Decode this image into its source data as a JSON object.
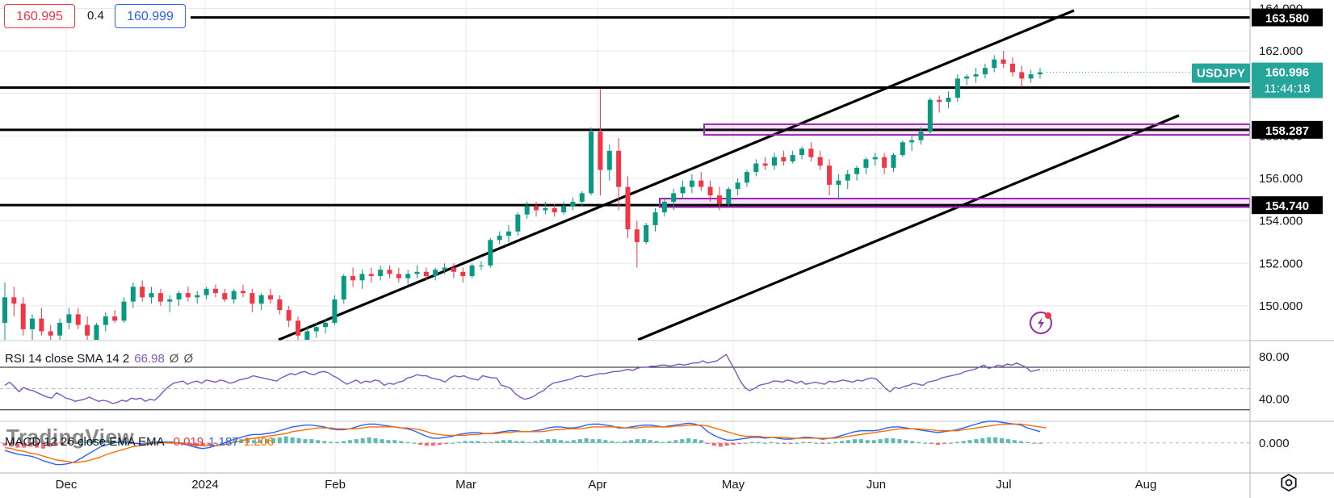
{
  "quote_bar": {
    "sell": "160.995",
    "spread": "0.4",
    "buy": "160.999"
  },
  "symbol": {
    "name": "USDJPY",
    "price": "160.996",
    "countdown": "11:44:18"
  },
  "watermark": "TradingView",
  "colors": {
    "up": "#089981",
    "down": "#f23645",
    "box": "#9c27b0",
    "rsi": "#7e57c2",
    "macd": "#2962ff",
    "signal": "#ff6d00",
    "symbol_bg": "#26a69a"
  },
  "price_axis": {
    "ticks": [
      "164.000",
      "162.000",
      "160.000",
      "158.000",
      "156.000",
      "154.000",
      "152.000",
      "150.000"
    ],
    "range": [
      148.4,
      164.4
    ]
  },
  "level_labels": [
    "163.580",
    "160.277",
    "158.287",
    "154.740"
  ],
  "time_axis": [
    "Dec",
    "2024",
    "Feb",
    "Mar",
    "Apr",
    "May",
    "Jun",
    "Jul",
    "Aug"
  ],
  "rsi": {
    "legend": {
      "label": "RSI 14 close SMA 14 2",
      "value": "66.98",
      "na1": "Ø",
      "na2": "Ø"
    },
    "ticks": [
      "80.00",
      "40.00"
    ],
    "range": [
      20,
      95
    ],
    "values": [
      53,
      56,
      52,
      47,
      51,
      49,
      48,
      46,
      44,
      42,
      41,
      46,
      44,
      41,
      40,
      38,
      39,
      40,
      42,
      40,
      38,
      39,
      38,
      36,
      37,
      39,
      38,
      41,
      40,
      41,
      38,
      40,
      39,
      43,
      48,
      52,
      55,
      56,
      57,
      54,
      56,
      57,
      55,
      58,
      57,
      56,
      58,
      57,
      55,
      56,
      58,
      59,
      60,
      62,
      61,
      60,
      59,
      58,
      57,
      60,
      62,
      64,
      63,
      65,
      66,
      64,
      63,
      65,
      66,
      65,
      62,
      60,
      57,
      54,
      56,
      58,
      55,
      57,
      56,
      58,
      57,
      53,
      55,
      54,
      56,
      57,
      60,
      61,
      63,
      62,
      62,
      60,
      59,
      58,
      56,
      60,
      62,
      61,
      62,
      60,
      59,
      58,
      62,
      61,
      60,
      60,
      53,
      52,
      50,
      45,
      42,
      40,
      41,
      43,
      46,
      48,
      52,
      55,
      56,
      57,
      58,
      59,
      61,
      62,
      61,
      62,
      63,
      64,
      64,
      65,
      66,
      66,
      67,
      68,
      67,
      69,
      70,
      70,
      71,
      71,
      72,
      72,
      71,
      72,
      73,
      72,
      73,
      74,
      74,
      76,
      74,
      75,
      76,
      79,
      82,
      74,
      66,
      57,
      51,
      48,
      50,
      53,
      54,
      55,
      57,
      57,
      56,
      58,
      57,
      55,
      57,
      54,
      55,
      56,
      55,
      54,
      57,
      56,
      57,
      58,
      57,
      56,
      58,
      57,
      59,
      60,
      59,
      55,
      50,
      47,
      51,
      50,
      52,
      53,
      55,
      54,
      53,
      56,
      57,
      58,
      60,
      61,
      62,
      63,
      64,
      66,
      67,
      68,
      70,
      72,
      69,
      70,
      72,
      71,
      73,
      72,
      74,
      72,
      70,
      66,
      67,
      68
    ],
    "last": 66.98
  },
  "macd": {
    "legend": {
      "label": "MACD 12 26 close EMA EMA",
      "hist": "-0.019",
      "macd": "1.187",
      "signal": "1.206"
    },
    "ticks": [
      "0.000"
    ],
    "range": [
      -3.2,
      2.3
    ],
    "hist": [
      -0.3,
      -0.4,
      -0.5,
      -0.5,
      -0.4,
      -0.5,
      -0.6,
      -0.4,
      -0.3,
      -0.2,
      -0.1,
      0.0,
      0.2,
      0.3,
      0.4,
      0.4,
      0.3,
      0.2,
      0.1,
      0.0,
      -0.1,
      0.0,
      0.1,
      0.2,
      0.2,
      0.1,
      0.0,
      -0.1,
      -0.2,
      -0.3,
      -0.4,
      -0.3,
      -0.2,
      -0.1,
      0.0,
      0.2,
      0.3,
      0.4,
      0.4,
      0.3,
      0.3,
      0.4,
      0.5,
      0.6,
      0.7,
      0.6,
      0.5,
      0.4,
      0.4,
      0.3,
      0.2,
      0.1,
      0.1,
      0.2,
      0.3,
      0.4,
      0.5,
      0.6,
      0.5,
      0.4,
      0.3,
      0.3,
      0.2,
      0.1,
      0.0,
      -0.2,
      -0.3,
      -0.3,
      -0.2,
      -0.1,
      0.0,
      0.1,
      0.2,
      0.2,
      0.2,
      0.1,
      0.1,
      0.2,
      0.3,
      0.3,
      0.2,
      0.2,
      0.1,
      0.2,
      0.3,
      0.4,
      0.4,
      0.3,
      0.2,
      0.3,
      0.4,
      0.5,
      0.4,
      0.4,
      0.3,
      0.2,
      0.1,
      0.2,
      0.3,
      0.4,
      0.4,
      0.3,
      0.2,
      0.1,
      0.2,
      0.3,
      0.4,
      0.5,
      0.4,
      0.3,
      -0.1,
      -0.3,
      -0.4,
      -0.3,
      -0.2,
      -0.1,
      0.0,
      0.1,
      0.1,
      0.0,
      0.1,
      0.0,
      -0.1,
      -0.1,
      0.0,
      0.1,
      0.1,
      0.0,
      -0.1,
      0.0,
      0.1,
      0.2,
      0.3,
      0.4,
      0.4,
      0.3,
      0.3,
      0.4,
      0.5,
      0.5,
      0.4,
      0.3,
      0.2,
      0.1,
      0.0,
      -0.1,
      -0.2,
      -0.1,
      0.0,
      0.1,
      0.2,
      0.3,
      0.4,
      0.5,
      0.6,
      0.6,
      0.5,
      0.4,
      0.3,
      0.2,
      0.1,
      0.0,
      -0.02
    ],
    "line": [
      -0.8,
      -1.0,
      -1.2,
      -1.3,
      -1.4,
      -1.6,
      -1.9,
      -2.1,
      -2.3,
      -2.3,
      -2.2,
      -2.0,
      -1.6,
      -1.2,
      -0.8,
      -0.4,
      -0.2,
      0.0,
      0.1,
      0.1,
      0.0,
      -0.1,
      -0.1,
      0.0,
      0.1,
      0.1,
      0.1,
      0.0,
      -0.1,
      -0.3,
      -0.5,
      -0.6,
      -0.5,
      -0.3,
      -0.1,
      0.2,
      0.4,
      0.6,
      0.8,
      0.9,
      0.9,
      1.0,
      1.1,
      1.3,
      1.5,
      1.7,
      1.8,
      1.9,
      1.9,
      1.8,
      1.7,
      1.5,
      1.4,
      1.4,
      1.5,
      1.7,
      1.9,
      2.0,
      2.0,
      1.9,
      1.8,
      1.7,
      1.6,
      1.5,
      1.3,
      1.0,
      0.7,
      0.5,
      0.5,
      0.6,
      0.7,
      0.9,
      1.0,
      1.1,
      1.1,
      1.0,
      1.0,
      1.1,
      1.2,
      1.3,
      1.3,
      1.2,
      1.2,
      1.3,
      1.4,
      1.6,
      1.7,
      1.7,
      1.6,
      1.6,
      1.7,
      1.9,
      2.0,
      2.0,
      1.9,
      1.8,
      1.6,
      1.6,
      1.7,
      1.8,
      1.9,
      1.9,
      1.8,
      1.7,
      1.8,
      1.9,
      2.0,
      2.1,
      2.0,
      1.8,
      1.2,
      0.8,
      0.5,
      0.3,
      0.3,
      0.4,
      0.5,
      0.6,
      0.6,
      0.5,
      0.6,
      0.5,
      0.4,
      0.4,
      0.5,
      0.6,
      0.6,
      0.5,
      0.4,
      0.5,
      0.6,
      0.8,
      1.0,
      1.2,
      1.3,
      1.3,
      1.3,
      1.4,
      1.6,
      1.7,
      1.7,
      1.6,
      1.5,
      1.4,
      1.3,
      1.2,
      1.1,
      1.2,
      1.3,
      1.4,
      1.6,
      1.8,
      2.0,
      2.2,
      2.3,
      2.3,
      2.2,
      2.1,
      2.0,
      1.9,
      1.6,
      1.4,
      1.2
    ],
    "signal_line": [
      -0.5,
      -0.6,
      -0.8,
      -0.9,
      -1.1,
      -1.2,
      -1.4,
      -1.6,
      -1.8,
      -1.9,
      -2.0,
      -2.1,
      -2.0,
      -1.9,
      -1.7,
      -1.5,
      -1.2,
      -1.0,
      -0.8,
      -0.6,
      -0.4,
      -0.3,
      -0.2,
      -0.1,
      0.0,
      0.0,
      0.0,
      0.0,
      0.0,
      -0.1,
      -0.2,
      -0.3,
      -0.3,
      -0.3,
      -0.2,
      -0.1,
      0.1,
      0.2,
      0.4,
      0.5,
      0.6,
      0.7,
      0.8,
      0.9,
      1.0,
      1.2,
      1.3,
      1.4,
      1.5,
      1.6,
      1.6,
      1.6,
      1.5,
      1.5,
      1.5,
      1.5,
      1.6,
      1.7,
      1.7,
      1.7,
      1.7,
      1.7,
      1.6,
      1.6,
      1.5,
      1.4,
      1.2,
      1.0,
      0.9,
      0.8,
      0.8,
      0.8,
      0.8,
      0.9,
      0.9,
      1.0,
      1.0,
      1.0,
      1.1,
      1.1,
      1.2,
      1.2,
      1.2,
      1.2,
      1.2,
      1.3,
      1.4,
      1.4,
      1.5,
      1.5,
      1.5,
      1.6,
      1.7,
      1.7,
      1.7,
      1.7,
      1.7,
      1.6,
      1.6,
      1.6,
      1.7,
      1.7,
      1.7,
      1.7,
      1.7,
      1.8,
      1.8,
      1.9,
      1.9,
      1.9,
      1.8,
      1.6,
      1.4,
      1.2,
      1.0,
      0.8,
      0.7,
      0.7,
      0.7,
      0.6,
      0.6,
      0.6,
      0.6,
      0.5,
      0.5,
      0.5,
      0.5,
      0.5,
      0.5,
      0.5,
      0.5,
      0.6,
      0.7,
      0.8,
      0.9,
      1.0,
      1.1,
      1.2,
      1.3,
      1.4,
      1.5,
      1.5,
      1.5,
      1.5,
      1.4,
      1.4,
      1.3,
      1.3,
      1.3,
      1.3,
      1.4,
      1.5,
      1.6,
      1.7,
      1.8,
      1.9,
      2.0,
      2.0,
      2.0,
      2.0,
      1.9,
      1.8,
      1.7,
      1.6
    ]
  },
  "candles": [
    [
      149.2,
      151.1,
      148.4,
      150.4
    ],
    [
      150.4,
      150.9,
      149.5,
      150.1
    ],
    [
      150.1,
      150.4,
      148.6,
      148.9
    ],
    [
      148.9,
      149.6,
      148.4,
      149.4
    ],
    [
      149.4,
      149.9,
      148.6,
      148.8
    ],
    [
      148.8,
      149.1,
      148.4,
      148.6
    ],
    [
      148.6,
      149.4,
      148.4,
      149.2
    ],
    [
      149.2,
      149.9,
      148.9,
      149.6
    ],
    [
      149.6,
      149.9,
      148.9,
      149.1
    ],
    [
      149.1,
      149.5,
      148.4,
      148.6
    ],
    [
      148.4,
      149.2,
      148.4,
      149.1
    ],
    [
      149.1,
      149.7,
      148.8,
      149.5
    ],
    [
      149.5,
      149.8,
      149.2,
      149.3
    ],
    [
      149.3,
      150.4,
      149.2,
      150.2
    ],
    [
      150.2,
      151.1,
      149.9,
      150.9
    ],
    [
      150.9,
      151.2,
      150.2,
      150.4
    ],
    [
      150.4,
      150.9,
      150.1,
      150.6
    ],
    [
      150.6,
      150.8,
      150.0,
      150.2
    ],
    [
      150.2,
      150.5,
      149.7,
      150.3
    ],
    [
      150.3,
      150.7,
      150.0,
      150.6
    ],
    [
      150.6,
      150.9,
      150.2,
      150.4
    ],
    [
      150.4,
      150.7,
      150.1,
      150.5
    ],
    [
      150.5,
      150.9,
      150.3,
      150.8
    ],
    [
      150.8,
      151.0,
      150.4,
      150.6
    ],
    [
      150.6,
      150.8,
      150.2,
      150.3
    ],
    [
      150.3,
      150.8,
      150.1,
      150.7
    ],
    [
      150.7,
      151.0,
      150.4,
      150.6
    ],
    [
      150.6,
      150.8,
      149.7,
      150.1
    ],
    [
      150.1,
      150.6,
      149.8,
      150.5
    ],
    [
      150.5,
      150.8,
      150.1,
      150.3
    ],
    [
      150.3,
      150.5,
      149.6,
      149.8
    ],
    [
      149.8,
      150.0,
      149.0,
      149.3
    ],
    [
      149.3,
      149.5,
      148.4,
      148.6
    ],
    [
      148.4,
      149.0,
      148.4,
      148.8
    ],
    [
      148.8,
      149.2,
      148.5,
      149.0
    ],
    [
      149.0,
      149.4,
      148.7,
      149.2
    ],
    [
      149.2,
      150.5,
      149.1,
      150.3
    ],
    [
      150.3,
      151.5,
      150.1,
      151.4
    ],
    [
      151.4,
      151.8,
      150.9,
      151.2
    ],
    [
      151.2,
      151.7,
      150.8,
      151.5
    ],
    [
      151.5,
      151.8,
      151.1,
      151.4
    ],
    [
      151.4,
      151.9,
      151.2,
      151.7
    ],
    [
      151.7,
      151.9,
      151.3,
      151.5
    ],
    [
      151.5,
      151.8,
      151.1,
      151.3
    ],
    [
      151.3,
      151.7,
      151.0,
      151.5
    ],
    [
      151.5,
      151.9,
      151.3,
      151.6
    ],
    [
      151.6,
      151.8,
      151.2,
      151.4
    ],
    [
      151.4,
      151.8,
      151.2,
      151.7
    ],
    [
      151.7,
      152.0,
      151.5,
      151.8
    ],
    [
      151.8,
      152.0,
      151.3,
      151.6
    ],
    [
      151.6,
      151.8,
      151.1,
      151.4
    ],
    [
      151.4,
      152.0,
      151.3,
      151.9
    ],
    [
      151.9,
      152.1,
      151.7,
      151.9
    ],
    [
      151.9,
      153.2,
      151.8,
      153.1
    ],
    [
      153.1,
      153.5,
      152.9,
      153.3
    ],
    [
      153.3,
      153.8,
      153.0,
      153.5
    ],
    [
      153.5,
      154.4,
      153.3,
      154.3
    ],
    [
      154.3,
      154.9,
      154.1,
      154.7
    ],
    [
      154.7,
      154.9,
      154.2,
      154.5
    ],
    [
      154.5,
      154.9,
      154.3,
      154.6
    ],
    [
      154.6,
      154.8,
      154.2,
      154.4
    ],
    [
      154.4,
      154.9,
      154.3,
      154.7
    ],
    [
      154.7,
      155.1,
      154.5,
      154.9
    ],
    [
      154.9,
      155.4,
      154.7,
      155.3
    ],
    [
      155.3,
      158.4,
      155.2,
      158.2
    ],
    [
      158.2,
      160.2,
      155.2,
      156.4
    ],
    [
      156.4,
      157.6,
      155.9,
      157.3
    ],
    [
      157.3,
      157.9,
      154.5,
      155.6
    ],
    [
      155.6,
      156.1,
      153.2,
      153.6
    ],
    [
      153.6,
      154.0,
      151.8,
      153.0
    ],
    [
      153.0,
      153.9,
      152.9,
      153.8
    ],
    [
      153.8,
      154.6,
      153.5,
      154.4
    ],
    [
      154.4,
      155.1,
      154.2,
      154.9
    ],
    [
      154.9,
      155.5,
      154.5,
      155.3
    ],
    [
      155.3,
      155.9,
      155.0,
      155.6
    ],
    [
      155.6,
      156.2,
      155.3,
      155.9
    ],
    [
      155.9,
      156.3,
      155.4,
      155.6
    ],
    [
      155.6,
      155.9,
      154.9,
      155.2
    ],
    [
      155.2,
      155.6,
      154.5,
      154.8
    ],
    [
      154.8,
      155.6,
      154.7,
      155.5
    ],
    [
      155.5,
      156.0,
      155.2,
      155.8
    ],
    [
      155.8,
      156.4,
      155.6,
      156.3
    ],
    [
      156.3,
      156.9,
      156.1,
      156.7
    ],
    [
      156.7,
      157.0,
      156.4,
      156.6
    ],
    [
      156.6,
      157.2,
      156.4,
      157.0
    ],
    [
      157.0,
      157.3,
      156.6,
      156.8
    ],
    [
      156.8,
      157.3,
      156.7,
      157.1
    ],
    [
      157.1,
      157.5,
      156.9,
      157.4
    ],
    [
      157.4,
      157.7,
      156.8,
      157.0
    ],
    [
      157.0,
      157.3,
      156.4,
      156.6
    ],
    [
      156.6,
      156.9,
      155.2,
      155.7
    ],
    [
      155.7,
      156.2,
      155.0,
      155.9
    ],
    [
      155.9,
      156.4,
      155.5,
      156.2
    ],
    [
      156.2,
      156.6,
      155.9,
      156.5
    ],
    [
      156.5,
      157.0,
      156.2,
      156.9
    ],
    [
      156.9,
      157.2,
      156.6,
      157.0
    ],
    [
      157.0,
      157.2,
      156.2,
      156.5
    ],
    [
      156.5,
      157.2,
      156.3,
      157.1
    ],
    [
      157.1,
      157.8,
      157.0,
      157.7
    ],
    [
      157.7,
      158.0,
      157.3,
      157.8
    ],
    [
      157.8,
      158.4,
      157.6,
      158.2
    ],
    [
      158.2,
      159.8,
      158.1,
      159.7
    ],
    [
      159.7,
      159.9,
      159.1,
      159.6
    ],
    [
      159.6,
      160.1,
      159.3,
      159.8
    ],
    [
      159.8,
      160.9,
      159.6,
      160.7
    ],
    [
      160.7,
      160.9,
      160.4,
      160.8
    ],
    [
      160.8,
      161.2,
      160.5,
      160.9
    ],
    [
      160.9,
      161.4,
      160.7,
      161.2
    ],
    [
      161.2,
      161.8,
      161.0,
      161.6
    ],
    [
      161.6,
      162.0,
      161.2,
      161.4
    ],
    [
      161.4,
      161.7,
      160.8,
      161.0
    ],
    [
      161.0,
      161.3,
      160.3,
      160.7
    ],
    [
      160.7,
      161.1,
      160.5,
      160.9
    ],
    [
      160.9,
      161.2,
      160.7,
      160.996
    ]
  ]
}
